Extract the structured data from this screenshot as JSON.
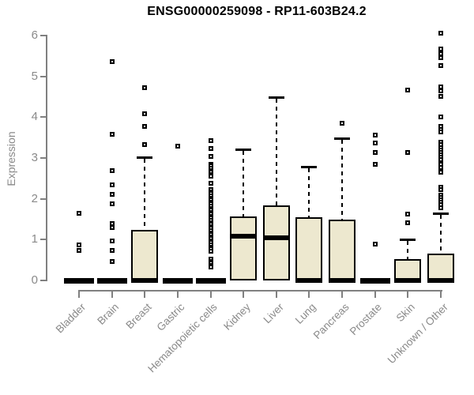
{
  "title": "ENSG00000259098 - RP11-603B24.2",
  "colors": {
    "box_fill": "#EDE8CF",
    "box_border": "#000000",
    "median": "#000000",
    "axis": "#808080",
    "tick_label": "#8a8a8a",
    "title": "#000000",
    "background": "#ffffff"
  },
  "chart_data": {
    "type": "boxplot",
    "title": "ENSG00000259098 - RP11-603B24.2",
    "xlabel": "",
    "ylabel": "Expression",
    "ylim": [
      0,
      6
    ],
    "yticks": [
      0,
      1,
      2,
      3,
      4,
      5,
      6
    ],
    "grid": false,
    "legend": false,
    "categories": [
      "Bladder",
      "Brain",
      "Breast",
      "Gastric",
      "Hematopoietic cells",
      "Kidney",
      "Liver",
      "Lung",
      "Pancreas",
      "Prostate",
      "Skin",
      "Unknown / Other"
    ],
    "series": [
      {
        "name": "Bladder",
        "q1": 0,
        "median": 0,
        "q3": 0,
        "whisker_low": 0,
        "whisker_high": 0,
        "outliers": [
          1.65,
          0.87,
          0.74
        ]
      },
      {
        "name": "Brain",
        "q1": 0,
        "median": 0,
        "q3": 0,
        "whisker_low": 0,
        "whisker_high": 0,
        "outliers": [
          5.37,
          3.58,
          2.7,
          2.34,
          2.11,
          1.88,
          1.39,
          1.3,
          0.97,
          0.74,
          0.47
        ]
      },
      {
        "name": "Breast",
        "q1": 0,
        "median": 0,
        "q3": 1.23,
        "whisker_low": 0,
        "whisker_high": 3.02,
        "outliers": [
          4.72,
          4.08,
          3.77,
          3.33
        ]
      },
      {
        "name": "Gastric",
        "q1": 0,
        "median": 0,
        "q3": 0,
        "whisker_low": 0,
        "whisker_high": 0,
        "outliers": [
          3.3
        ]
      },
      {
        "name": "Hematopoietic cells",
        "q1": 0,
        "median": 0,
        "q3": 0,
        "whisker_low": 0,
        "whisker_high": 0,
        "outliers": [
          3.42,
          3.23,
          3.04,
          2.85,
          2.8,
          2.75,
          2.7,
          2.65,
          2.6,
          2.55,
          2.38,
          2.22,
          2.17,
          2.12,
          2.07,
          2.02,
          1.97,
          1.92,
          1.87,
          1.82,
          1.77,
          1.72,
          1.67,
          1.62,
          1.57,
          1.52,
          1.47,
          1.42,
          1.37,
          1.32,
          1.27,
          1.22,
          1.17,
          1.12,
          1.07,
          1.02,
          0.97,
          0.92,
          0.87,
          0.82,
          0.77,
          0.72,
          0.52,
          0.47,
          0.42,
          0.37,
          0.33
        ]
      },
      {
        "name": "Kidney",
        "q1": 0,
        "median": 1.08,
        "q3": 1.57,
        "whisker_low": 0,
        "whisker_high": 3.21,
        "outliers": []
      },
      {
        "name": "Liver",
        "q1": 0,
        "median": 1.04,
        "q3": 1.84,
        "whisker_low": 0,
        "whisker_high": 4.49,
        "outliers": []
      },
      {
        "name": "Lung",
        "q1": 0,
        "median": 0,
        "q3": 1.55,
        "whisker_low": 0,
        "whisker_high": 2.78,
        "outliers": []
      },
      {
        "name": "Pancreas",
        "q1": 0,
        "median": 0,
        "q3": 1.49,
        "whisker_low": 0,
        "whisker_high": 3.48,
        "outliers": [
          3.85
        ]
      },
      {
        "name": "Prostate",
        "q1": 0,
        "median": 0,
        "q3": 0,
        "whisker_low": 0,
        "whisker_high": 0,
        "outliers": [
          3.56,
          3.37,
          3.14,
          2.84,
          0.89
        ]
      },
      {
        "name": "Skin",
        "q1": 0,
        "median": 0,
        "q3": 0.52,
        "whisker_low": 0,
        "whisker_high": 1.01,
        "outliers": [
          4.66,
          3.13,
          1.63,
          1.42
        ]
      },
      {
        "name": "Unknown / Other",
        "q1": 0,
        "median": 0,
        "q3": 0.65,
        "whisker_low": 0,
        "whisker_high": 1.65,
        "outliers": [
          6.06,
          5.67,
          5.55,
          5.45,
          5.26,
          4.74,
          4.64,
          4.51,
          4.0,
          3.77,
          3.7,
          3.63,
          3.38,
          3.32,
          3.26,
          3.2,
          3.14,
          3.08,
          3.02,
          2.96,
          2.84,
          2.77,
          2.65,
          2.28,
          2.22,
          2.09,
          2.03,
          1.97,
          1.91,
          1.85,
          1.78
        ]
      }
    ]
  }
}
